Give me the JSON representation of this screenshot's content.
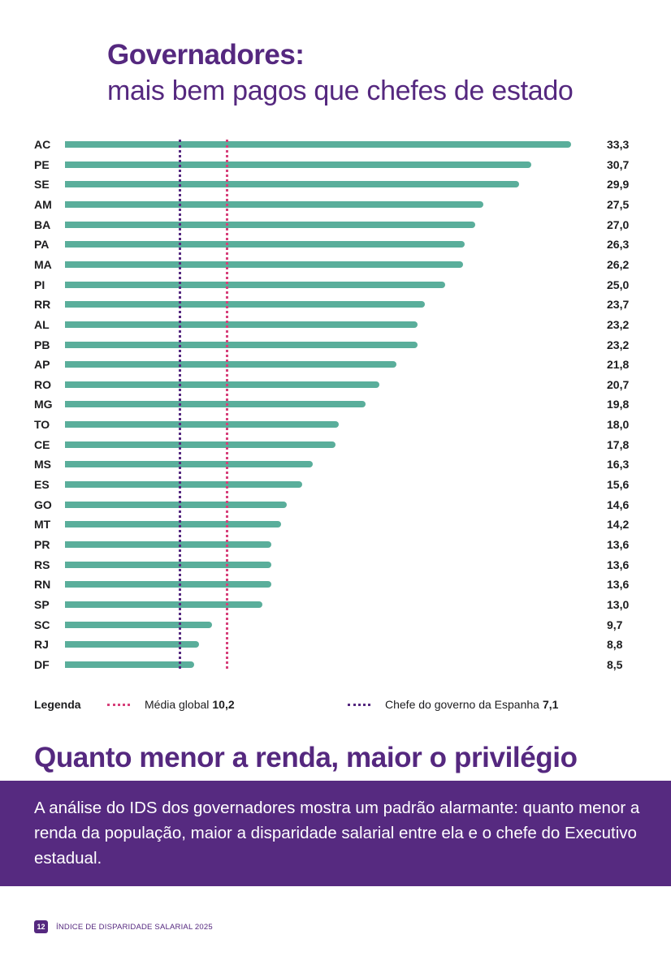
{
  "header": {
    "title": "Governadores:",
    "subtitle": "mais bem pagos que chefes de estado"
  },
  "chart_data": {
    "type": "bar",
    "orientation": "horizontal",
    "title": "Governadores: mais bem pagos que chefes de estado",
    "xlabel": "",
    "ylabel": "",
    "xlim": [
      0,
      33.3
    ],
    "grid": false,
    "categories": [
      "AC",
      "PE",
      "SE",
      "AM",
      "BA",
      "PA",
      "MA",
      "PI",
      "RR",
      "AL",
      "PB",
      "AP",
      "RO",
      "MG",
      "TO",
      "CE",
      "MS",
      "ES",
      "GO",
      "MT",
      "PR",
      "RS",
      "RN",
      "SP",
      "SC",
      "RJ",
      "DF"
    ],
    "values": [
      33.3,
      30.7,
      29.9,
      27.5,
      27.0,
      26.3,
      26.2,
      25.0,
      23.7,
      23.2,
      23.2,
      21.8,
      20.7,
      19.8,
      18.0,
      17.8,
      16.3,
      15.6,
      14.6,
      14.2,
      13.6,
      13.6,
      13.6,
      13.0,
      9.7,
      8.8,
      8.5
    ],
    "value_labels": [
      "33,3",
      "30,7",
      "29,9",
      "27,5",
      "27,0",
      "26,3",
      "26,2",
      "25,0",
      "23,7",
      "23,2",
      "23,2",
      "21,8",
      "20,7",
      "19,8",
      "18,0",
      "17,8",
      "16,3",
      "15,6",
      "14,6",
      "14,2",
      "13,6",
      "13,6",
      "13,6",
      "13,0",
      "9,7",
      "8,8",
      "8,5"
    ],
    "bar_color": "#5aae9b",
    "reference_lines": [
      {
        "name": "Média global",
        "value": 10.2,
        "label_value": "10,2",
        "color": "#d6407a",
        "style": "dotted"
      },
      {
        "name": "Chefe do governo da Espanha",
        "value": 7.1,
        "label_value": "7,1",
        "color": "#55287f",
        "style": "dotted"
      }
    ],
    "legend": {
      "title": "Legenda",
      "placement": "bottom"
    }
  },
  "section": {
    "title": "Quanto menor a renda, maior o privilégio",
    "body": "A análise do IDS dos governadores mostra um padrão alarmante: quanto menor a renda da população, maior a disparidade salarial entre ela e o chefe do Executivo estadual."
  },
  "footer": {
    "page_number": "12",
    "publication": "ÍNDICE DE DISPARIDADE SALARIAL 2025"
  },
  "colors": {
    "brand_purple": "#55287f",
    "bar_green": "#5aae9b",
    "mean_pink": "#d6407a"
  }
}
